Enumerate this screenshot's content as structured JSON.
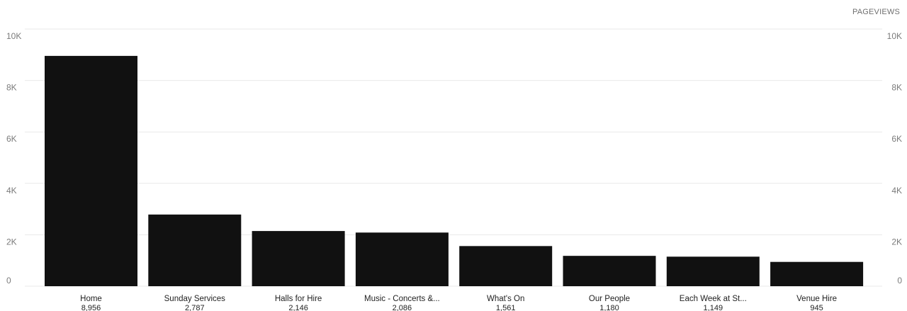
{
  "metric_label": "PAGEVIEWS",
  "colors": {
    "bar": "#111111",
    "grid": "#e9e9e9",
    "tick": "#7b7b7b",
    "text": "#222222"
  },
  "chart_data": {
    "type": "bar",
    "categories": [
      "Home",
      "Sunday Services",
      "Halls for Hire",
      "Music - Concerts &...",
      "What's On",
      "Our People",
      "Each Week at St...",
      "Venue Hire"
    ],
    "values": [
      8956,
      2787,
      2146,
      2086,
      1561,
      1180,
      1149,
      945
    ],
    "value_labels": [
      "8,956",
      "2,787",
      "2,146",
      "2,086",
      "1,561",
      "1,180",
      "1,149",
      "945"
    ],
    "ylim": [
      0,
      10000
    ],
    "yticks": [
      0,
      2000,
      4000,
      6000,
      8000,
      10000
    ],
    "ytick_labels": [
      "0",
      "2K",
      "4K",
      "6K",
      "8K",
      "10K"
    ],
    "grid": true,
    "legend": "none"
  }
}
